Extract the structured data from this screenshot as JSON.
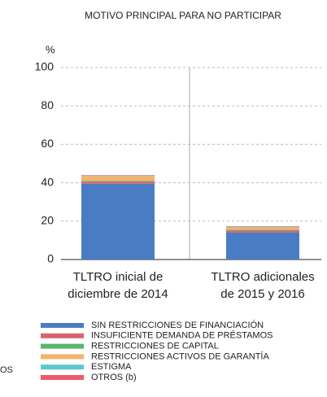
{
  "chart_data": {
    "type": "stacked_bar",
    "title": "MOTIVO PRINCIPAL PARA NO PARTICIPAR",
    "y_label": "%",
    "categories": [
      "TLTRO inicial de\ndiciembre de 2014",
      "TLTRO adicionales\nde 2015 y 2016"
    ],
    "series": [
      {
        "name": "SIN RESTRICCIONES DE FINANCIACIÓN",
        "color": "#4a7cc4",
        "values": [
          39.5,
          14
        ]
      },
      {
        "name": "INSUFICIENTE DEMANDA DE PRÉSTAMOS",
        "color": "#d9636f",
        "values": [
          1,
          1
        ]
      },
      {
        "name": "RESTRICCIONES DE CAPITAL",
        "color": "#5bb56a",
        "values": [
          0.5,
          0.5
        ]
      },
      {
        "name": "RESTRICCIONES ACTIVOS DE GARANTÍA",
        "color": "#f7b36a",
        "values": [
          2.5,
          1.2
        ]
      },
      {
        "name": "ESTIGMA",
        "color": "#5cc8d0",
        "values": [
          0.3,
          0.3
        ]
      },
      {
        "name": "OTROS (b)",
        "color": "#ef5a6a",
        "values": [
          0.2,
          0.3
        ]
      }
    ],
    "ylim": [
      0,
      100
    ],
    "yticks": [
      0,
      20,
      40,
      60,
      80,
      100
    ],
    "grid": true,
    "left_fragment": "OS"
  }
}
